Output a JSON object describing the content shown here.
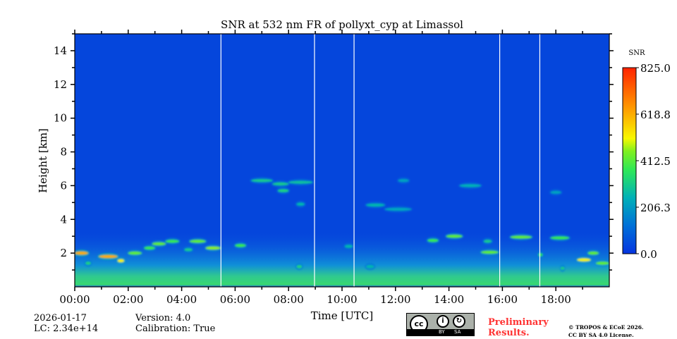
{
  "chart_data": {
    "type": "heatmap",
    "title": "SNR at 532 nm FR of pollyxt_cyp at Limassol",
    "xlabel": "Time [UTC]",
    "ylabel": "Height [km]",
    "xlim_hours": [
      0,
      20
    ],
    "ylim": [
      0,
      15
    ],
    "xticks": [
      "00:00",
      "02:00",
      "04:00",
      "06:00",
      "08:00",
      "10:00",
      "12:00",
      "14:00",
      "16:00",
      "18:00"
    ],
    "yticks": [
      "2",
      "4",
      "6",
      "8",
      "10",
      "12",
      "14"
    ],
    "colorbar": {
      "label": "SNR",
      "range": [
        0,
        825
      ],
      "ticks": [
        "0.0",
        "206.3",
        "412.5",
        "618.8",
        "825.0"
      ]
    },
    "background_snr": 40,
    "data_gaps_hours": [
      5.47,
      8.97,
      10.45,
      15.9,
      17.4
    ],
    "features": [
      {
        "t0": 0.0,
        "t1": 0.5,
        "h": 2.0,
        "snr": 620
      },
      {
        "t0": 0.4,
        "t1": 0.6,
        "h": 1.4,
        "snr": 320
      },
      {
        "t0": 0.9,
        "t1": 1.6,
        "h": 1.8,
        "snr": 620
      },
      {
        "t0": 1.6,
        "t1": 1.85,
        "h": 1.55,
        "snr": 520
      },
      {
        "t0": 2.0,
        "t1": 2.5,
        "h": 2.0,
        "snr": 420
      },
      {
        "t0": 2.6,
        "t1": 3.0,
        "h": 2.3,
        "snr": 380
      },
      {
        "t0": 2.9,
        "t1": 3.4,
        "h": 2.55,
        "snr": 420
      },
      {
        "t0": 3.4,
        "t1": 3.9,
        "h": 2.7,
        "snr": 380
      },
      {
        "t0": 4.1,
        "t1": 4.4,
        "h": 2.2,
        "snr": 300
      },
      {
        "t0": 4.3,
        "t1": 4.9,
        "h": 2.7,
        "snr": 420
      },
      {
        "t0": 4.9,
        "t1": 5.45,
        "h": 2.3,
        "snr": 460
      },
      {
        "t0": 6.0,
        "t1": 6.4,
        "h": 2.45,
        "snr": 380
      },
      {
        "t0": 6.6,
        "t1": 7.4,
        "h": 6.3,
        "snr": 300
      },
      {
        "t0": 7.4,
        "t1": 8.0,
        "h": 6.1,
        "snr": 300
      },
      {
        "t0": 7.6,
        "t1": 8.0,
        "h": 5.7,
        "snr": 320
      },
      {
        "t0": 8.0,
        "t1": 8.9,
        "h": 6.2,
        "snr": 280
      },
      {
        "t0": 8.3,
        "t1": 8.6,
        "h": 4.9,
        "snr": 260
      },
      {
        "t0": 8.3,
        "t1": 8.5,
        "h": 1.2,
        "snr": 320
      },
      {
        "t0": 10.1,
        "t1": 10.4,
        "h": 2.4,
        "snr": 260
      },
      {
        "t0": 10.9,
        "t1": 11.2,
        "h": 1.2,
        "snr": 260
      },
      {
        "t0": 10.9,
        "t1": 11.6,
        "h": 4.85,
        "snr": 260
      },
      {
        "t0": 11.6,
        "t1": 12.6,
        "h": 4.6,
        "snr": 230
      },
      {
        "t0": 12.1,
        "t1": 12.5,
        "h": 6.3,
        "snr": 220
      },
      {
        "t0": 13.2,
        "t1": 13.6,
        "h": 2.75,
        "snr": 380
      },
      {
        "t0": 13.9,
        "t1": 14.5,
        "h": 3.0,
        "snr": 420
      },
      {
        "t0": 14.4,
        "t1": 15.2,
        "h": 6.0,
        "snr": 250
      },
      {
        "t0": 15.2,
        "t1": 15.85,
        "h": 2.05,
        "snr": 420
      },
      {
        "t0": 15.3,
        "t1": 15.6,
        "h": 2.7,
        "snr": 300
      },
      {
        "t0": 16.3,
        "t1": 17.1,
        "h": 2.95,
        "snr": 420
      },
      {
        "t0": 17.35,
        "t1": 17.5,
        "h": 1.9,
        "snr": 360
      },
      {
        "t0": 17.8,
        "t1": 18.5,
        "h": 2.9,
        "snr": 380
      },
      {
        "t0": 17.8,
        "t1": 18.2,
        "h": 5.6,
        "snr": 220
      },
      {
        "t0": 18.2,
        "t1": 18.3,
        "h": 1.1,
        "snr": 300
      },
      {
        "t0": 18.8,
        "t1": 19.3,
        "h": 1.6,
        "snr": 520
      },
      {
        "t0": 19.2,
        "t1": 19.6,
        "h": 2.0,
        "snr": 420
      },
      {
        "t0": 19.5,
        "t1": 20.0,
        "h": 1.4,
        "snr": 420
      }
    ]
  },
  "footer": {
    "date": "2026-01-17",
    "lc": "LC: 2.34e+14",
    "version": "Version: 4.0",
    "calibration": "Calibration: True",
    "cc_badge": {
      "cc": "cc",
      "by": "BY",
      "sa": "SA"
    },
    "preliminary_1": "Preliminary",
    "preliminary_2": "Results.",
    "license_1": "© TROPOS & ECoE 2026.",
    "license_2": "CC BY SA 4.0 License."
  }
}
